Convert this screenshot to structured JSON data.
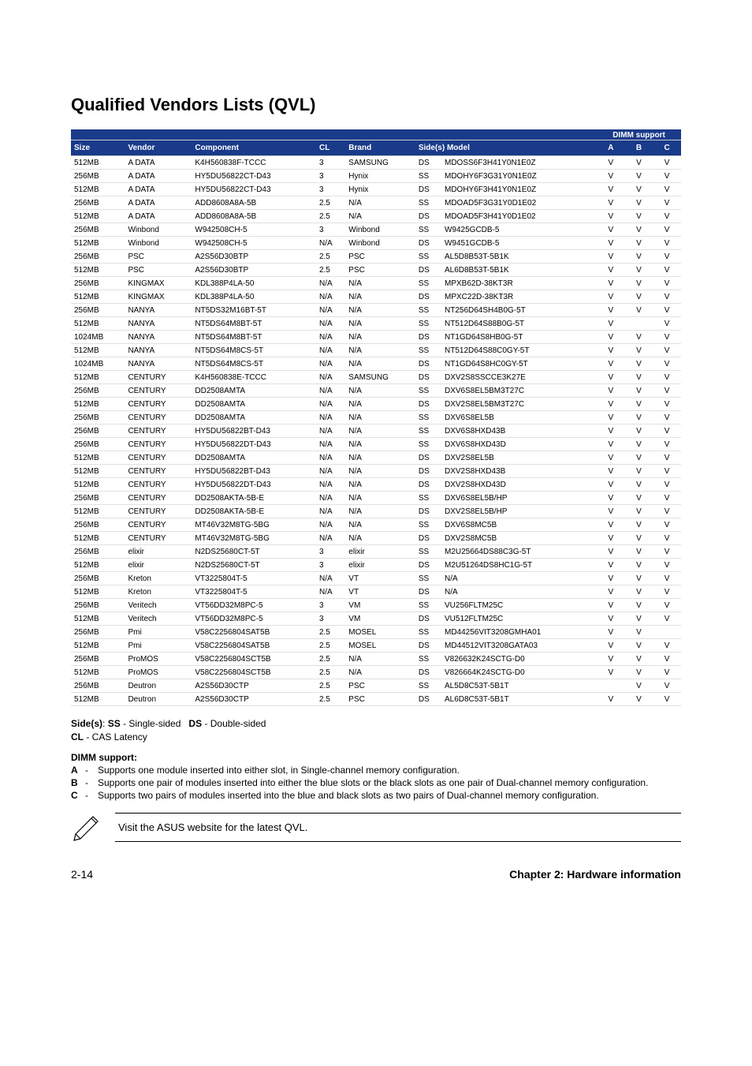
{
  "title": "Qualified Vendors Lists (QVL)",
  "colors": {
    "header_bg": "#1a3a8a",
    "header_fg": "#ffffff",
    "row_border": "#e0e0e0"
  },
  "table": {
    "super_header": "DIMM support",
    "columns": [
      "Size",
      "Vendor",
      "Component",
      "CL",
      "Brand",
      "Side(s)",
      "Model",
      "A",
      "B",
      "C"
    ],
    "rows": [
      [
        "512MB",
        "A DATA",
        "K4H560838F-TCCC",
        "3",
        "SAMSUNG",
        "DS",
        "MDOSS6F3H41Y0N1E0Z",
        "V",
        "V",
        "V"
      ],
      [
        "256MB",
        "A DATA",
        "HY5DU56822CT-D43",
        "3",
        "Hynix",
        "SS",
        "MDOHY6F3G31Y0N1E0Z",
        "V",
        "V",
        "V"
      ],
      [
        "512MB",
        "A DATA",
        "HY5DU56822CT-D43",
        "3",
        "Hynix",
        "DS",
        "MDOHY6F3H41Y0N1E0Z",
        "V",
        "V",
        "V"
      ],
      [
        "256MB",
        "A DATA",
        "ADD8608A8A-5B",
        "2.5",
        "N/A",
        "SS",
        "MDOAD5F3G31Y0D1E02",
        "V",
        "V",
        "V"
      ],
      [
        "512MB",
        "A DATA",
        "ADD8608A8A-5B",
        "2.5",
        "N/A",
        "DS",
        "MDOAD5F3H41Y0D1E02",
        "V",
        "V",
        "V"
      ],
      [
        "256MB",
        "Winbond",
        "W942508CH-5",
        "3",
        "Winbond",
        "SS",
        "W9425GCDB-5",
        "V",
        "V",
        "V"
      ],
      [
        "512MB",
        "Winbond",
        "W942508CH-5",
        "N/A",
        "Winbond",
        "DS",
        "W9451GCDB-5",
        "V",
        "V",
        "V"
      ],
      [
        "256MB",
        "PSC",
        "A2S56D30BTP",
        "2.5",
        "PSC",
        "SS",
        "AL5D8B53T-5B1K",
        "V",
        "V",
        "V"
      ],
      [
        "512MB",
        "PSC",
        "A2S56D30BTP",
        "2.5",
        "PSC",
        "DS",
        "AL6D8B53T-5B1K",
        "V",
        "V",
        "V"
      ],
      [
        "256MB",
        "KINGMAX",
        "KDL388P4LA-50",
        "N/A",
        "N/A",
        "SS",
        "MPXB62D-38KT3R",
        "V",
        "V",
        "V"
      ],
      [
        "512MB",
        "KINGMAX",
        "KDL388P4LA-50",
        "N/A",
        "N/A",
        "DS",
        "MPXC22D-38KT3R",
        "V",
        "V",
        "V"
      ],
      [
        "256MB",
        "NANYA",
        "NT5DS32M16BT-5T",
        "N/A",
        "N/A",
        "SS",
        "NT256D64SH4B0G-5T",
        "V",
        "V",
        "V"
      ],
      [
        "512MB",
        "NANYA",
        "NT5DS64M8BT-5T",
        "N/A",
        "N/A",
        "SS",
        "NT512D64S88B0G-5T",
        "V",
        "",
        "V"
      ],
      [
        "1024MB",
        "NANYA",
        "NT5DS64M8BT-5T",
        "N/A",
        "N/A",
        "DS",
        "NT1GD64S8HB0G-5T",
        "V",
        "V",
        "V"
      ],
      [
        "512MB",
        "NANYA",
        "NT5DS64M8CS-5T",
        "N/A",
        "N/A",
        "SS",
        "NT512D64S88C0GY-5T",
        "V",
        "V",
        "V"
      ],
      [
        "1024MB",
        "NANYA",
        "NT5DS64M8CS-5T",
        "N/A",
        "N/A",
        "DS",
        "NT1GD64S8HC0GY-5T",
        "V",
        "V",
        "V"
      ],
      [
        "512MB",
        "CENTURY",
        "K4H560838E-TCCC",
        "N/A",
        "SAMSUNG",
        "DS",
        "DXV2S8SSCCE3K27E",
        "V",
        "V",
        "V"
      ],
      [
        "256MB",
        "CENTURY",
        "DD2508AMTA",
        "N/A",
        "N/A",
        "SS",
        "DXV6S8EL5BM3T27C",
        "V",
        "V",
        "V"
      ],
      [
        "512MB",
        "CENTURY",
        "DD2508AMTA",
        "N/A",
        "N/A",
        "DS",
        "DXV2S8EL5BM3T27C",
        "V",
        "V",
        "V"
      ],
      [
        "256MB",
        "CENTURY",
        "DD2508AMTA",
        "N/A",
        "N/A",
        "SS",
        "DXV6S8EL5B",
        "V",
        "V",
        "V"
      ],
      [
        "256MB",
        "CENTURY",
        "HY5DU56822BT-D43",
        "N/A",
        "N/A",
        "SS",
        "DXV6S8HXD43B",
        "V",
        "V",
        "V"
      ],
      [
        "256MB",
        "CENTURY",
        "HY5DU56822DT-D43",
        "N/A",
        "N/A",
        "SS",
        "DXV6S8HXD43D",
        "V",
        "V",
        "V"
      ],
      [
        "512MB",
        "CENTURY",
        "DD2508AMTA",
        "N/A",
        "N/A",
        "DS",
        "DXV2S8EL5B",
        "V",
        "V",
        "V"
      ],
      [
        "512MB",
        "CENTURY",
        "HY5DU56822BT-D43",
        "N/A",
        "N/A",
        "DS",
        "DXV2S8HXD43B",
        "V",
        "V",
        "V"
      ],
      [
        "512MB",
        "CENTURY",
        "HY5DU56822DT-D43",
        "N/A",
        "N/A",
        "DS",
        "DXV2S8HXD43D",
        "V",
        "V",
        "V"
      ],
      [
        "256MB",
        "CENTURY",
        "DD2508AKTA-5B-E",
        "N/A",
        "N/A",
        "SS",
        "DXV6S8EL5B/HP",
        "V",
        "V",
        "V"
      ],
      [
        "512MB",
        "CENTURY",
        "DD2508AKTA-5B-E",
        "N/A",
        "N/A",
        "DS",
        "DXV2S8EL5B/HP",
        "V",
        "V",
        "V"
      ],
      [
        "256MB",
        "CENTURY",
        "MT46V32M8TG-5BG",
        "N/A",
        "N/A",
        "SS",
        "DXV6S8MC5B",
        "V",
        "V",
        "V"
      ],
      [
        "512MB",
        "CENTURY",
        "MT46V32M8TG-5BG",
        "N/A",
        "N/A",
        "DS",
        "DXV2S8MC5B",
        "V",
        "V",
        "V"
      ],
      [
        "256MB",
        "elixir",
        "N2DS25680CT-5T",
        "3",
        "elixir",
        "SS",
        "M2U25664DS88C3G-5T",
        "V",
        "V",
        "V"
      ],
      [
        "512MB",
        "elixir",
        "N2DS25680CT-5T",
        "3",
        "elixir",
        "DS",
        "M2U51264DS8HC1G-5T",
        "V",
        "V",
        "V"
      ],
      [
        "256MB",
        "Kreton",
        "VT3225804T-5",
        "N/A",
        "VT",
        "SS",
        "N/A",
        "V",
        "V",
        "V"
      ],
      [
        "512MB",
        "Kreton",
        "VT3225804T-5",
        "N/A",
        "VT",
        "DS",
        "N/A",
        "V",
        "V",
        "V"
      ],
      [
        "256MB",
        "Veritech",
        "VT56DD32M8PC-5",
        "3",
        "VM",
        "SS",
        "VU256FLTM25C",
        "V",
        "V",
        "V"
      ],
      [
        "512MB",
        "Veritech",
        "VT56DD32M8PC-5",
        "3",
        "VM",
        "DS",
        "VU512FLTM25C",
        "V",
        "V",
        "V"
      ],
      [
        "256MB",
        "Pmi",
        "V58C2256804SAT5B",
        "2.5",
        "MOSEL",
        "SS",
        "MD44256VIT3208GMHA01",
        "V",
        "V",
        ""
      ],
      [
        "512MB",
        "Pmi",
        "V58C2256804SAT5B",
        "2.5",
        "MOSEL",
        "DS",
        "MD44512VIT3208GATA03",
        "V",
        "V",
        "V"
      ],
      [
        "256MB",
        "ProMOS",
        "V58C2256804SCT5B",
        "2.5",
        "N/A",
        "SS",
        "V826632K24SCTG-D0",
        "V",
        "V",
        "V"
      ],
      [
        "512MB",
        "ProMOS",
        "V58C2256804SCT5B",
        "2.5",
        "N/A",
        "DS",
        "V826664K24SCTG-D0",
        "V",
        "V",
        "V"
      ],
      [
        "256MB",
        "Deutron",
        "A2S56D30CTP",
        "2.5",
        "PSC",
        "SS",
        "AL5D8C53T-5B1T",
        "",
        "V",
        "V"
      ],
      [
        "512MB",
        "Deutron",
        "A2S56D30CTP",
        "2.5",
        "PSC",
        "DS",
        "AL6D8C53T-5B1T",
        "V",
        "V",
        "V"
      ]
    ]
  },
  "legend": {
    "sides": "Side(s): SS - Single-sided   DS - Double-sided",
    "cl": "CL - CAS Latency",
    "support_heading": "DIMM support:",
    "items": [
      {
        "key": "A",
        "desc": "Supports one module inserted into either slot, in Single-channel memory configuration."
      },
      {
        "key": "B",
        "desc": "Supports one pair of modules inserted into either the blue slots or the black slots as one pair of Dual-channel memory configuration."
      },
      {
        "key": "C",
        "desc": "Supports two pairs of modules inserted into the blue and black slots as two pairs of Dual-channel memory configuration."
      }
    ]
  },
  "callout": "Visit the ASUS website for the latest QVL.",
  "footer": {
    "page": "2-14",
    "chapter": "Chapter 2: Hardware information"
  }
}
